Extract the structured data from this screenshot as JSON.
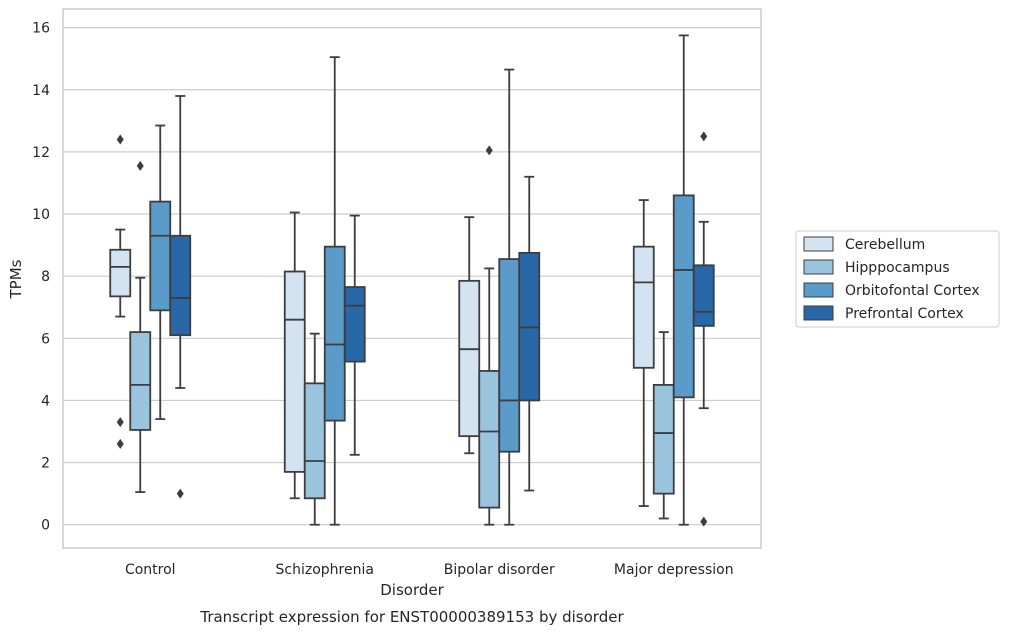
{
  "chart_data": {
    "type": "box",
    "title": "",
    "caption": "Transcript expression for ENST00000389153 by disorder",
    "xlabel": "Disorder",
    "ylabel": "TPMs",
    "ylim": [
      -0.75,
      16.6
    ],
    "yticks": [
      0,
      2,
      4,
      6,
      8,
      10,
      12,
      14,
      16
    ],
    "grid": "horizontal",
    "legend_position": "right",
    "categories": [
      "Control",
      "Schizophrenia",
      "Bipolar disorder",
      "Major depression"
    ],
    "series": [
      {
        "name": "Cerebellum",
        "color": "#d4e3f2",
        "boxes": [
          {
            "whisker_low": 6.7,
            "q1": 7.35,
            "median": 8.3,
            "q3": 8.85,
            "whisker_high": 9.5,
            "outliers": [
              12.4,
              3.3,
              2.6
            ]
          },
          {
            "whisker_low": 0.85,
            "q1": 1.7,
            "median": 6.6,
            "q3": 8.15,
            "whisker_high": 10.05,
            "outliers": []
          },
          {
            "whisker_low": 2.3,
            "q1": 2.85,
            "median": 5.65,
            "q3": 7.85,
            "whisker_high": 9.9,
            "outliers": []
          },
          {
            "whisker_low": 0.6,
            "q1": 5.05,
            "median": 7.8,
            "q3": 8.95,
            "whisker_high": 10.45,
            "outliers": []
          }
        ]
      },
      {
        "name": "Hipppocampus",
        "color": "#9ac3de",
        "boxes": [
          {
            "whisker_low": 1.05,
            "q1": 3.05,
            "median": 4.5,
            "q3": 6.2,
            "whisker_high": 7.95,
            "outliers": [
              11.55
            ]
          },
          {
            "whisker_low": 0.0,
            "q1": 0.85,
            "median": 2.05,
            "q3": 4.55,
            "whisker_high": 6.15,
            "outliers": []
          },
          {
            "whisker_low": 0.0,
            "q1": 0.55,
            "median": 3.0,
            "q3": 4.95,
            "whisker_high": 8.25,
            "outliers": [
              12.05
            ]
          },
          {
            "whisker_low": 0.2,
            "q1": 1.0,
            "median": 2.95,
            "q3": 4.5,
            "whisker_high": 6.2,
            "outliers": []
          }
        ]
      },
      {
        "name": "Orbitofontal Cortex",
        "color": "#5a9bc9",
        "boxes": [
          {
            "whisker_low": 3.4,
            "q1": 6.9,
            "median": 9.3,
            "q3": 10.4,
            "whisker_high": 12.85,
            "outliers": []
          },
          {
            "whisker_low": 0.0,
            "q1": 3.35,
            "median": 5.8,
            "q3": 8.95,
            "whisker_high": 15.05,
            "outliers": []
          },
          {
            "whisker_low": 0.0,
            "q1": 2.35,
            "median": 4.0,
            "q3": 8.55,
            "whisker_high": 14.65,
            "outliers": []
          },
          {
            "whisker_low": 0.0,
            "q1": 4.1,
            "median": 8.2,
            "q3": 10.6,
            "whisker_high": 15.75,
            "outliers": []
          }
        ]
      },
      {
        "name": "Prefrontal Cortex",
        "color": "#2868a8",
        "boxes": [
          {
            "whisker_low": 4.4,
            "q1": 6.1,
            "median": 7.3,
            "q3": 9.3,
            "whisker_high": 13.8,
            "outliers": [
              1.0
            ]
          },
          {
            "whisker_low": 2.25,
            "q1": 5.25,
            "median": 7.05,
            "q3": 7.65,
            "whisker_high": 9.95,
            "outliers": []
          },
          {
            "whisker_low": 1.1,
            "q1": 4.0,
            "median": 6.35,
            "q3": 8.75,
            "whisker_high": 11.2,
            "outliers": []
          },
          {
            "whisker_low": 3.75,
            "q1": 6.4,
            "median": 6.85,
            "q3": 8.35,
            "whisker_high": 9.75,
            "outliers": [
              12.5,
              0.1
            ]
          }
        ]
      }
    ]
  }
}
